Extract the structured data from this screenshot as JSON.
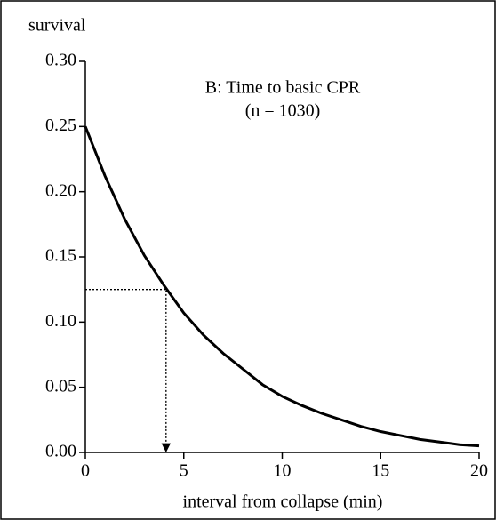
{
  "chart_data": {
    "type": "line",
    "title": "B: Time to basic CPR",
    "subtitle": "(n = 1030)",
    "y_label": "survival",
    "x_label": "interval from collapse (min)",
    "x": [
      0,
      1,
      2,
      3,
      4,
      5,
      6,
      7,
      8,
      9,
      10,
      11,
      12,
      13,
      14,
      15,
      16,
      17,
      18,
      19,
      20
    ],
    "series": [
      {
        "color": "#000000",
        "values": [
          0.25,
          0.212,
          0.179,
          0.151,
          0.128,
          0.107,
          0.09,
          0.076,
          0.064,
          0.052,
          0.043,
          0.036,
          0.03,
          0.025,
          0.02,
          0.016,
          0.013,
          0.01,
          0.008,
          0.006,
          0.005
        ]
      }
    ],
    "marker": {
      "x": 4.1,
      "y": 0.125
    },
    "xlim": [
      0,
      20
    ],
    "xticks": [
      0,
      5,
      10,
      15,
      20
    ],
    "ylim": [
      0,
      0.3
    ],
    "yticks": [
      {
        "value": 0,
        "label": "0.00"
      },
      {
        "value": 0.05,
        "label": "0.05"
      },
      {
        "value": 0.1,
        "label": "0.10"
      },
      {
        "value": 0.15,
        "label": "0.15"
      },
      {
        "value": 0.2,
        "label": "0.20"
      },
      {
        "value": 0.25,
        "label": "0.25"
      },
      {
        "value": 0.3,
        "label": "0.30"
      }
    ]
  }
}
